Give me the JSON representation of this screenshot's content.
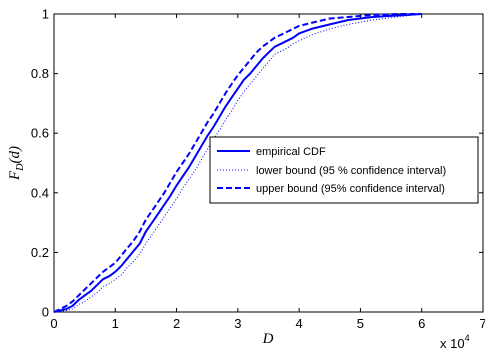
{
  "chart_data": {
    "type": "line",
    "xlabel": "D",
    "ylabel": "F_D(d)",
    "ylabel_main": "F",
    "ylabel_sub": "D",
    "ylabel_arg": "(d)",
    "x_exponent_label": "x 10",
    "x_exponent_power": "4",
    "xlim": [
      0,
      70000
    ],
    "ylim": [
      0,
      1
    ],
    "x_ticks": [
      0,
      10000,
      20000,
      30000,
      40000,
      50000,
      60000,
      70000
    ],
    "x_tick_labels": [
      "0",
      "1",
      "2",
      "3",
      "4",
      "5",
      "6",
      "7"
    ],
    "y_ticks": [
      0,
      0.2,
      0.4,
      0.6,
      0.8,
      1
    ],
    "y_tick_labels": [
      "0",
      "0.2",
      "0.4",
      "0.6",
      "0.8",
      "1"
    ],
    "grid": false,
    "legend_position": "center-right",
    "series": [
      {
        "name": "empirical CDF",
        "style": "solid",
        "color": "#0000ff",
        "x": [
          0,
          1000,
          2000,
          3000,
          4000,
          5000,
          6000,
          7000,
          8000,
          9000,
          10000,
          11000,
          12000,
          13000,
          14000,
          15000,
          16000,
          17000,
          18000,
          19000,
          20000,
          21000,
          22000,
          23000,
          24000,
          25000,
          26000,
          27000,
          28000,
          29000,
          30000,
          31000,
          32000,
          33000,
          34000,
          35000,
          36000,
          37000,
          38000,
          39000,
          40000,
          42000,
          45000,
          48000,
          52000,
          56000,
          60000
        ],
        "y": [
          0,
          0.005,
          0.01,
          0.02,
          0.04,
          0.055,
          0.07,
          0.09,
          0.11,
          0.12,
          0.135,
          0.155,
          0.18,
          0.205,
          0.23,
          0.27,
          0.3,
          0.33,
          0.36,
          0.39,
          0.425,
          0.455,
          0.485,
          0.52,
          0.555,
          0.59,
          0.62,
          0.655,
          0.69,
          0.72,
          0.75,
          0.78,
          0.8,
          0.825,
          0.85,
          0.87,
          0.89,
          0.9,
          0.91,
          0.92,
          0.935,
          0.95,
          0.965,
          0.98,
          0.99,
          0.995,
          1.0
        ]
      },
      {
        "name": "lower bound (95 % confidence interval)",
        "style": "dotted",
        "color": "#0000ff",
        "x": [
          0,
          1000,
          2000,
          3000,
          4000,
          5000,
          6000,
          7000,
          8000,
          9000,
          10000,
          11000,
          12000,
          13000,
          14000,
          15000,
          16000,
          17000,
          18000,
          19000,
          20000,
          21000,
          22000,
          23000,
          24000,
          25000,
          26000,
          27000,
          28000,
          29000,
          30000,
          31000,
          32000,
          33000,
          34000,
          35000,
          36000,
          37000,
          38000,
          39000,
          40000,
          42000,
          45000,
          48000,
          52000,
          56000,
          60000
        ],
        "y": [
          0,
          0.002,
          0.005,
          0.01,
          0.025,
          0.035,
          0.05,
          0.065,
          0.085,
          0.095,
          0.11,
          0.125,
          0.15,
          0.17,
          0.195,
          0.23,
          0.26,
          0.29,
          0.32,
          0.35,
          0.38,
          0.415,
          0.445,
          0.475,
          0.51,
          0.545,
          0.58,
          0.61,
          0.645,
          0.675,
          0.71,
          0.74,
          0.765,
          0.79,
          0.815,
          0.84,
          0.865,
          0.875,
          0.885,
          0.9,
          0.91,
          0.93,
          0.95,
          0.965,
          0.98,
          0.99,
          1.0
        ]
      },
      {
        "name": "upper bound (95% confidence interval)",
        "style": "dashed",
        "color": "#0000ff",
        "x": [
          0,
          1000,
          2000,
          3000,
          4000,
          5000,
          6000,
          7000,
          8000,
          9000,
          10000,
          11000,
          12000,
          13000,
          14000,
          15000,
          16000,
          17000,
          18000,
          19000,
          20000,
          21000,
          22000,
          23000,
          24000,
          25000,
          26000,
          27000,
          28000,
          29000,
          30000,
          31000,
          32000,
          33000,
          34000,
          35000,
          36000,
          37000,
          38000,
          39000,
          40000,
          42000,
          45000,
          48000,
          52000,
          56000,
          60000
        ],
        "y": [
          0,
          0.01,
          0.02,
          0.035,
          0.055,
          0.075,
          0.095,
          0.115,
          0.135,
          0.15,
          0.165,
          0.19,
          0.215,
          0.24,
          0.27,
          0.31,
          0.34,
          0.37,
          0.4,
          0.435,
          0.47,
          0.5,
          0.53,
          0.565,
          0.6,
          0.635,
          0.665,
          0.7,
          0.735,
          0.765,
          0.795,
          0.82,
          0.845,
          0.87,
          0.89,
          0.905,
          0.92,
          0.93,
          0.94,
          0.95,
          0.96,
          0.97,
          0.985,
          0.99,
          0.997,
          1.0,
          1.0
        ]
      }
    ]
  }
}
